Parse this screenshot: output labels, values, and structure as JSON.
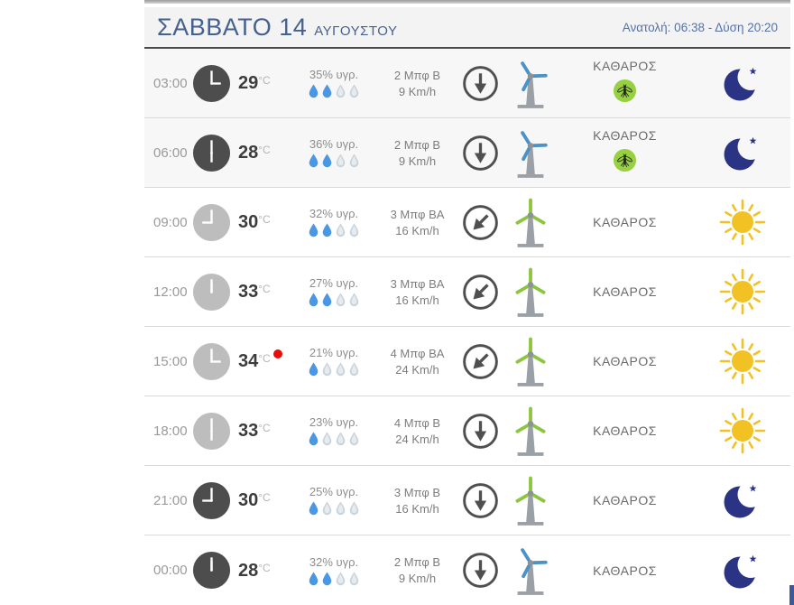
{
  "header": {
    "title_day": "ΣΑΒΒΑΤΟ 14",
    "title_month": "ΑΥΓΟΥΣΤΟΥ",
    "sun_info": "Ανατολή: 06:38 - Δύση 20:20"
  },
  "colors": {
    "accent_blue": "#46618f",
    "sun": "#f2c224",
    "moon": "#2b3385",
    "drop_filled": "#4a97e3",
    "drop_empty": "#c9d3db",
    "turbine_green": "#8cc63e",
    "turbine_blue": "#4b92c6",
    "turbine_tower": "#9aa0a6",
    "clock_dark": "#4d4d4d",
    "clock_light": "#bdbdbd",
    "arrow": "#4f4f4f",
    "mosquito_bg": "#97d141",
    "max_dot": "#e80c0c"
  },
  "icons": {
    "clock": "analog-clock",
    "humidity": "water-drops",
    "wind_direction_down": "arrow-down-in-circle",
    "wind_direction_down_left": "arrow-down-left-in-circle",
    "turbine": "wind-turbine",
    "mosquito": "mosquito-activity",
    "sky_moon": "crescent-moon-with-star",
    "sky_sun": "sun"
  },
  "rows": [
    {
      "time": "03:00",
      "temperature": "29",
      "temp_unit": "°C",
      "is_max": false,
      "humidity": "35% υγρ.",
      "drops_filled": 2,
      "drops_total": 4,
      "wind_beaufort": "2 Μπφ Β",
      "wind_speed": "9 Km/h",
      "wind_arrow": "down",
      "turbine": "blue",
      "condition": "ΚΑΘΑΡΟΣ",
      "mosquito": true,
      "sky": "moon",
      "clock_shade": "dark",
      "shaded": true
    },
    {
      "time": "06:00",
      "temperature": "28",
      "temp_unit": "°C",
      "is_max": false,
      "humidity": "36% υγρ.",
      "drops_filled": 2,
      "drops_total": 4,
      "wind_beaufort": "2 Μπφ Β",
      "wind_speed": "9 Km/h",
      "wind_arrow": "down",
      "turbine": "blue",
      "condition": "ΚΑΘΑΡΟΣ",
      "mosquito": true,
      "sky": "moon",
      "clock_shade": "dark",
      "shaded": true
    },
    {
      "time": "09:00",
      "temperature": "30",
      "temp_unit": "°C",
      "is_max": false,
      "humidity": "32% υγρ.",
      "drops_filled": 2,
      "drops_total": 4,
      "wind_beaufort": "3 Μπφ ΒΑ",
      "wind_speed": "16 Km/h",
      "wind_arrow": "down-left",
      "turbine": "green",
      "condition": "ΚΑΘΑΡΟΣ",
      "mosquito": false,
      "sky": "sun",
      "clock_shade": "light",
      "shaded": false
    },
    {
      "time": "12:00",
      "temperature": "33",
      "temp_unit": "°C",
      "is_max": false,
      "humidity": "27% υγρ.",
      "drops_filled": 2,
      "drops_total": 4,
      "wind_beaufort": "3 Μπφ ΒΑ",
      "wind_speed": "16 Km/h",
      "wind_arrow": "down-left",
      "turbine": "green",
      "condition": "ΚΑΘΑΡΟΣ",
      "mosquito": false,
      "sky": "sun",
      "clock_shade": "light",
      "shaded": false
    },
    {
      "time": "15:00",
      "temperature": "34",
      "temp_unit": "°C",
      "is_max": true,
      "humidity": "21% υγρ.",
      "drops_filled": 1,
      "drops_total": 4,
      "wind_beaufort": "4 Μπφ ΒΑ",
      "wind_speed": "24 Km/h",
      "wind_arrow": "down-left",
      "turbine": "green",
      "condition": "ΚΑΘΑΡΟΣ",
      "mosquito": false,
      "sky": "sun",
      "clock_shade": "light",
      "shaded": false
    },
    {
      "time": "18:00",
      "temperature": "33",
      "temp_unit": "°C",
      "is_max": false,
      "humidity": "23% υγρ.",
      "drops_filled": 1,
      "drops_total": 4,
      "wind_beaufort": "4 Μπφ Β",
      "wind_speed": "24 Km/h",
      "wind_arrow": "down",
      "turbine": "green",
      "condition": "ΚΑΘΑΡΟΣ",
      "mosquito": false,
      "sky": "sun",
      "clock_shade": "light",
      "shaded": false
    },
    {
      "time": "21:00",
      "temperature": "30",
      "temp_unit": "°C",
      "is_max": false,
      "humidity": "25% υγρ.",
      "drops_filled": 1,
      "drops_total": 4,
      "wind_beaufort": "3 Μπφ Β",
      "wind_speed": "16 Km/h",
      "wind_arrow": "down",
      "turbine": "green",
      "condition": "ΚΑΘΑΡΟΣ",
      "mosquito": false,
      "sky": "moon",
      "clock_shade": "dark",
      "shaded": false
    },
    {
      "time": "00:00",
      "temperature": "28",
      "temp_unit": "°C",
      "is_max": false,
      "humidity": "32% υγρ.",
      "drops_filled": 2,
      "drops_total": 4,
      "wind_beaufort": "2 Μπφ Β",
      "wind_speed": "9 Km/h",
      "wind_arrow": "down",
      "turbine": "blue",
      "condition": "ΚΑΘΑΡΟΣ",
      "mosquito": false,
      "sky": "moon",
      "clock_shade": "dark",
      "shaded": false
    }
  ]
}
